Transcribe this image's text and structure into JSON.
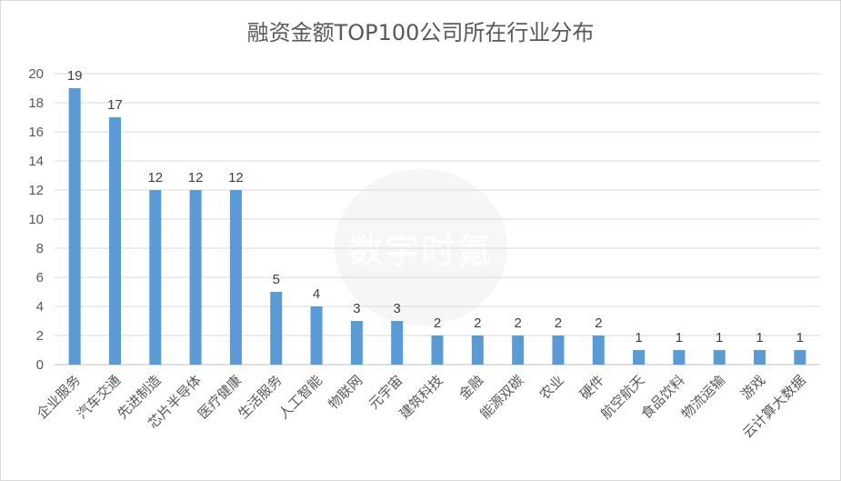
{
  "chart_data": {
    "type": "bar",
    "title": "融资金额TOP100公司所在行业分布",
    "categories": [
      "企业服务",
      "汽车交通",
      "先进制造",
      "芯片半导体",
      "医疗健康",
      "生活服务",
      "人工智能",
      "物联网",
      "元宇宙",
      "建筑科技",
      "金融",
      "能源双碳",
      "农业",
      "硬件",
      "航空航天",
      "食品饮料",
      "物流运输",
      "游戏",
      "云计算大数据"
    ],
    "values": [
      19,
      17,
      12,
      12,
      12,
      5,
      4,
      3,
      3,
      2,
      2,
      2,
      2,
      2,
      1,
      1,
      1,
      1,
      1
    ],
    "ylim": [
      0,
      20
    ],
    "yticks": [
      0,
      2,
      4,
      6,
      8,
      10,
      12,
      14,
      16,
      18,
      20
    ],
    "grid": true,
    "legend": "none",
    "bar_color": "#5b9bd5",
    "data_labels": true
  },
  "watermark": "数字时氪"
}
